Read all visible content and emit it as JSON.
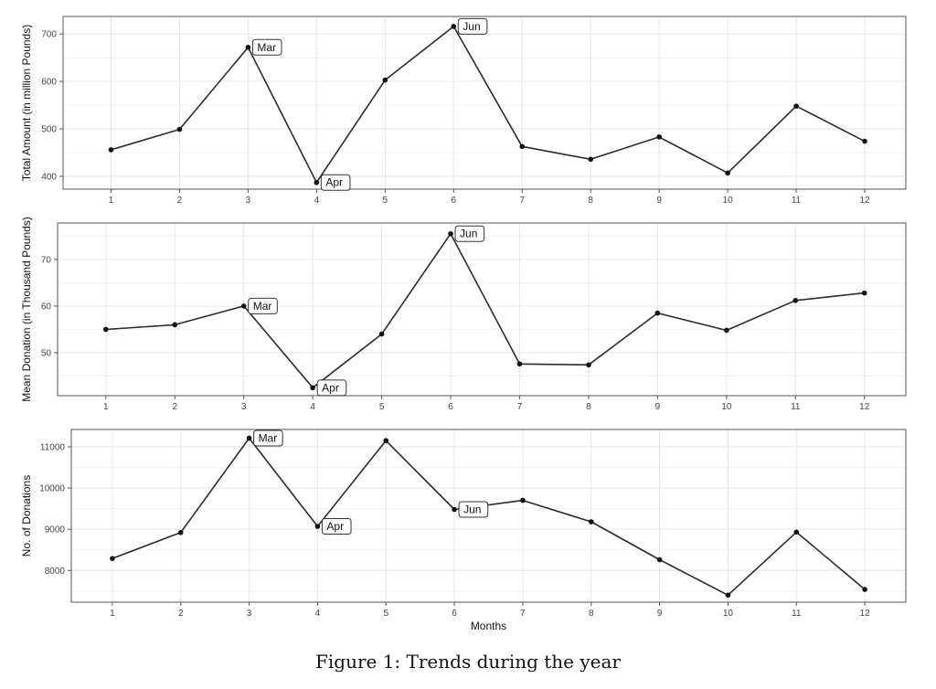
{
  "caption": "Figure 1: Trends during the year",
  "colors": {
    "line": "#2b2b2b",
    "grid": "#e6e6e6",
    "frame": "#555555",
    "point": "#111111"
  },
  "chart_data": [
    {
      "type": "line",
      "title": "",
      "xlabel": "",
      "ylabel": "Total Amount (in million Pounds)",
      "grid": true,
      "x": [
        1,
        2,
        3,
        4,
        5,
        6,
        7,
        8,
        9,
        10,
        11,
        12
      ],
      "xticks": [
        "1",
        "2",
        "3",
        "4",
        "5",
        "6",
        "7",
        "8",
        "9",
        "10",
        "11",
        "12"
      ],
      "xlim": [
        0.3,
        12.6
      ],
      "ylim": [
        373,
        737
      ],
      "yticks": [
        400,
        500,
        600,
        700
      ],
      "series": [
        {
          "values": [
            456,
            499,
            672,
            387,
            603,
            716,
            463,
            436,
            483,
            407,
            548,
            474
          ]
        }
      ],
      "annotations": [
        {
          "x": 3,
          "y": 672,
          "text": "Mar"
        },
        {
          "x": 4,
          "y": 387,
          "text": "Apr"
        },
        {
          "x": 6,
          "y": 716,
          "text": "Jun"
        }
      ]
    },
    {
      "type": "line",
      "title": "",
      "xlabel": "",
      "ylabel": "Mean Donation (in Thousand Pounds)",
      "grid": true,
      "x": [
        1,
        2,
        3,
        4,
        5,
        6,
        7,
        8,
        9,
        10,
        11,
        12
      ],
      "xticks": [
        "1",
        "2",
        "3",
        "4",
        "5",
        "6",
        "7",
        "8",
        "9",
        "10",
        "11",
        "12"
      ],
      "xlim": [
        0.3,
        12.6
      ],
      "ylim": [
        40.8,
        77.8
      ],
      "yticks": [
        50,
        60,
        70
      ],
      "series": [
        {
          "values": [
            55.0,
            56.0,
            60.0,
            42.5,
            54.0,
            75.5,
            47.6,
            47.4,
            58.5,
            54.8,
            61.2,
            62.8
          ]
        }
      ],
      "annotations": [
        {
          "x": 3,
          "y": 60.0,
          "text": "Mar"
        },
        {
          "x": 4,
          "y": 42.5,
          "text": "Apr"
        },
        {
          "x": 6,
          "y": 75.5,
          "text": "Jun"
        }
      ]
    },
    {
      "type": "line",
      "title": "",
      "xlabel": "Months",
      "ylabel": "No. of Donations",
      "grid": true,
      "x": [
        1,
        2,
        3,
        4,
        5,
        6,
        7,
        8,
        9,
        10,
        11,
        12
      ],
      "xticks": [
        "1",
        "2",
        "3",
        "4",
        "5",
        "6",
        "7",
        "8",
        "9",
        "10",
        "11",
        "12"
      ],
      "xlim": [
        0.4,
        12.6
      ],
      "ylim": [
        7230,
        11420
      ],
      "yticks": [
        8000,
        9000,
        10000,
        11000
      ],
      "series": [
        {
          "values": [
            8290,
            8920,
            11210,
            9070,
            11150,
            9480,
            9700,
            9180,
            8260,
            7400,
            8930,
            7540
          ]
        }
      ],
      "annotations": [
        {
          "x": 3,
          "y": 11210,
          "text": "Mar"
        },
        {
          "x": 4,
          "y": 9070,
          "text": "Apr"
        },
        {
          "x": 6,
          "y": 9480,
          "text": "Jun"
        }
      ]
    }
  ]
}
